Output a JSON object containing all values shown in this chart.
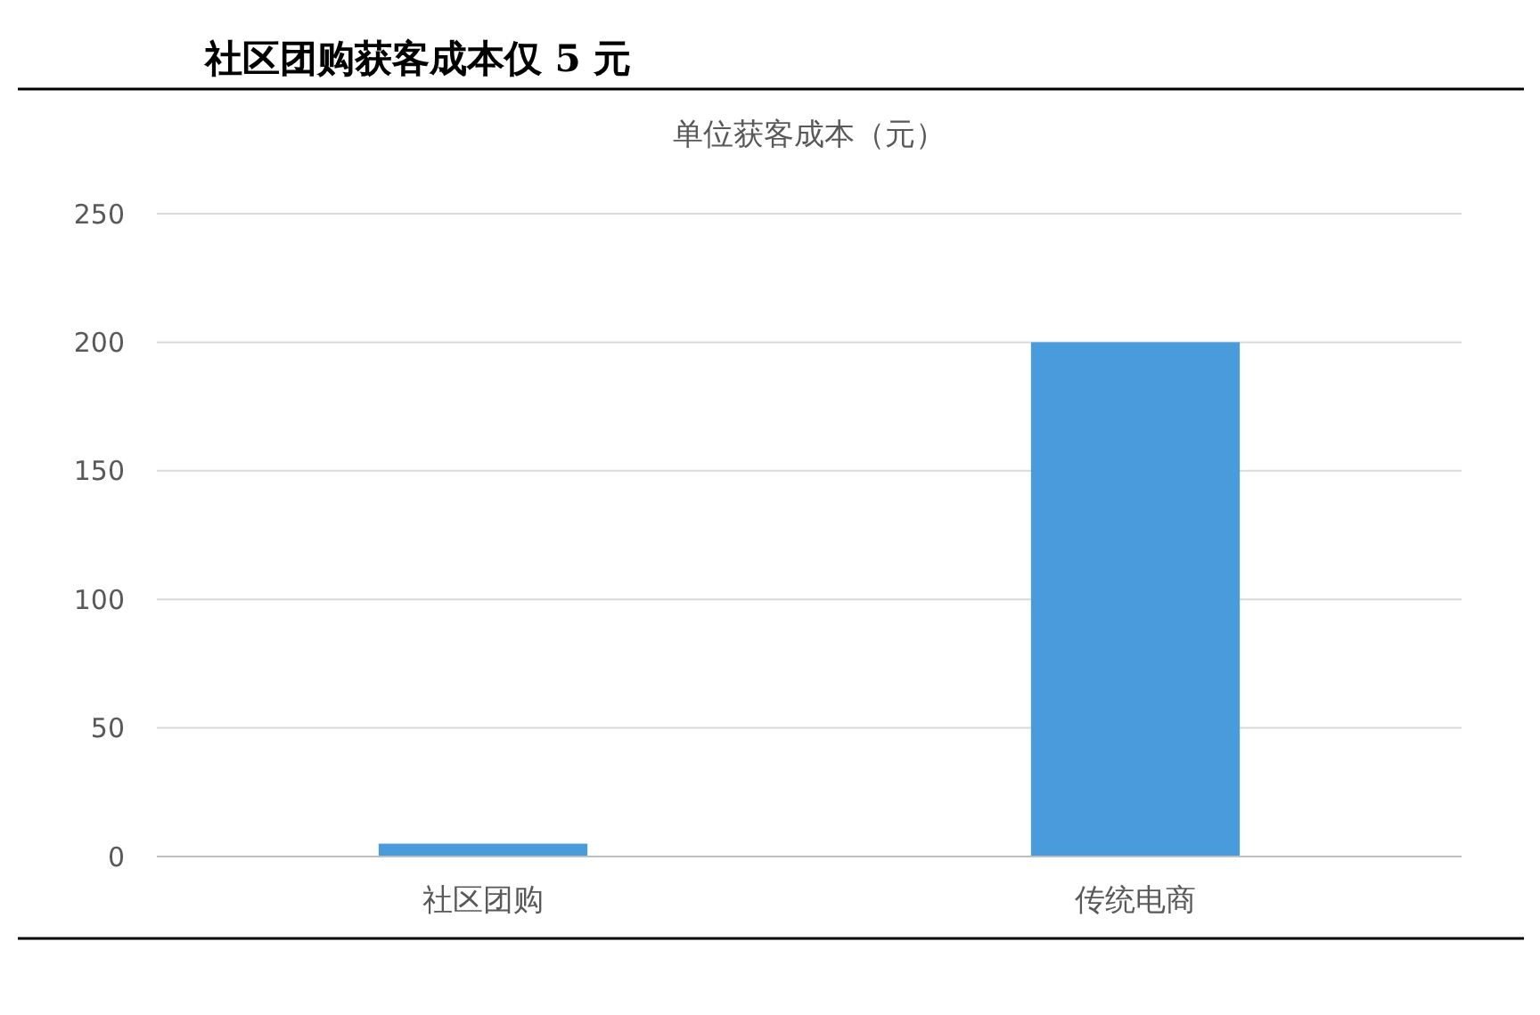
{
  "chart_data": {
    "type": "bar",
    "title": "社区团购获客成本仅 5 元",
    "subtitle": "单位获客成本（元）",
    "categories": [
      "社区团购",
      "传统电商"
    ],
    "values": [
      5,
      200
    ],
    "color": "#4a9bdc",
    "ylim": [
      0,
      250
    ],
    "yticks": [
      0,
      50,
      100,
      150,
      200,
      250
    ],
    "grid": "y"
  }
}
